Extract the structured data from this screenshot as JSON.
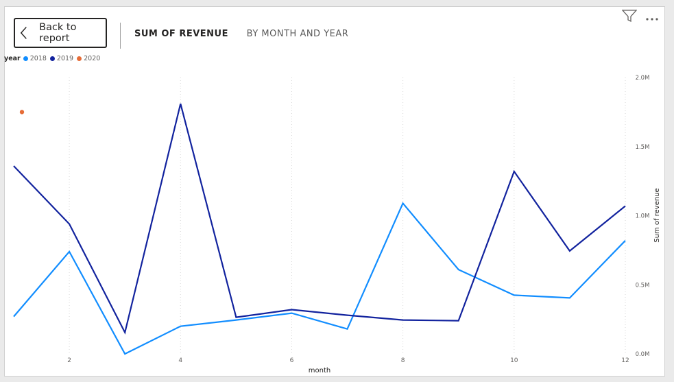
{
  "header": {
    "back_label": "Back to report",
    "title_main": "SUM OF REVENUE",
    "title_sub": "BY MONTH AND YEAR"
  },
  "icons": {
    "filter": "filter-icon",
    "more": "more-options-icon",
    "back": "chevron-left-icon"
  },
  "legend": {
    "title": "year",
    "items": [
      {
        "label": "2018",
        "color": "#118dff"
      },
      {
        "label": "2019",
        "color": "#12239e"
      },
      {
        "label": "2020",
        "color": "#e66c37"
      }
    ]
  },
  "chart_data": {
    "type": "line",
    "xlabel": "month",
    "ylabel": "Sum of revenue",
    "xlim": [
      1,
      12
    ],
    "ylim": [
      0,
      2000000
    ],
    "x_ticks": [
      2,
      4,
      6,
      8,
      10,
      12
    ],
    "y_ticks": [
      {
        "value": 0,
        "label": "0.0M"
      },
      {
        "value": 500000,
        "label": "0.5M"
      },
      {
        "value": 1000000,
        "label": "1.0M"
      },
      {
        "value": 1500000,
        "label": "1.5M"
      },
      {
        "value": 2000000,
        "label": "2.0M"
      }
    ],
    "grid": "vertical dotted",
    "legend_position": "top-left",
    "series": [
      {
        "name": "2018",
        "color": "#118dff",
        "x": [
          1,
          2,
          3,
          4,
          5,
          6,
          7,
          8,
          9,
          10,
          11,
          12
        ],
        "values": [
          270000,
          740000,
          0,
          200000,
          245000,
          295000,
          180000,
          1090000,
          610000,
          425000,
          405000,
          820000
        ]
      },
      {
        "name": "2019",
        "color": "#12239e",
        "x": [
          1,
          2,
          3,
          4,
          5,
          6,
          7,
          8,
          9,
          10,
          11,
          12
        ],
        "values": [
          1360000,
          940000,
          155000,
          1810000,
          265000,
          320000,
          280000,
          245000,
          240000,
          1320000,
          745000,
          1070000
        ]
      },
      {
        "name": "2020",
        "color": "#e66c37",
        "x": [
          1
        ],
        "values": [
          1750000
        ]
      }
    ]
  }
}
